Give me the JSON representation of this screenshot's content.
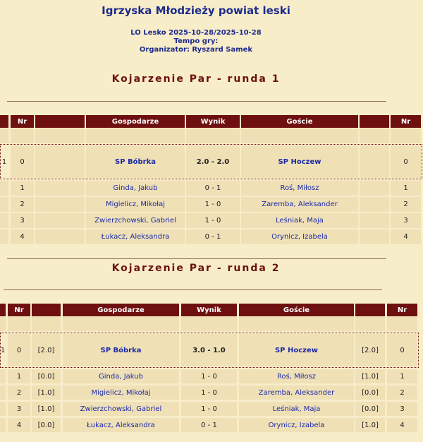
{
  "header": {
    "title": "Igrzyska Młodzieży powiat leski",
    "lines": [
      "LO Lesko 2025-10-28/2025-10-28",
      "Tempo gry:",
      "Organizator: Ryszard Samek"
    ]
  },
  "rounds": [
    {
      "heading": "Kojarzenie Par - runda 1",
      "table": {
        "header": [
          null,
          "Nr",
          null,
          "Gospodarze",
          "Wynik",
          "Goście",
          null,
          "Nr"
        ],
        "rows": [
          [
            null,
            null,
            null,
            null,
            null,
            null,
            null,
            null
          ],
          [
            "1",
            "0",
            null,
            "SP Bóbrka",
            "2.0 - 2.0",
            "SP Hoczew",
            null,
            "0"
          ],
          [
            null,
            "1",
            null,
            "Ginda, Jakub",
            "0 - 1",
            "Roś, Miłosz",
            null,
            "1"
          ],
          [
            null,
            "2",
            null,
            "Migielicz, Mikołaj",
            "1 - 0",
            "Zaremba, Aleksander",
            null,
            "2"
          ],
          [
            null,
            "3",
            null,
            "Zwierzchowski, Gabriel",
            "1 - 0",
            "Leśniak, Maja",
            null,
            "3"
          ],
          [
            null,
            "4",
            null,
            "Łukacz, Aleksandra",
            "0 - 1",
            "Orynicz, Izabela",
            null,
            "4"
          ]
        ]
      }
    },
    {
      "heading": "Kojarzenie Par - runda 2",
      "table": {
        "header": [
          null,
          "Nr",
          null,
          "Gospodarze",
          "Wynik",
          "Goście",
          null,
          "Nr"
        ],
        "rows": [
          [
            null,
            null,
            null,
            null,
            null,
            null,
            null,
            null
          ],
          [
            "1",
            "0",
            "[2.0]",
            "SP Bóbrka",
            "3.0 - 1.0",
            "SP Hoczew",
            "[2.0]",
            "0"
          ],
          [
            null,
            "1",
            "[0.0]",
            "Ginda, Jakub",
            "1 - 0",
            "Roś, Miłosz",
            "[1.0]",
            "1"
          ],
          [
            null,
            "2",
            "[1.0]",
            "Migielicz, Mikołaj",
            "1 - 0",
            "Zaremba, Aleksander",
            "[0.0]",
            "2"
          ],
          [
            null,
            "3",
            "[1.0]",
            "Zwierzchowski, Gabriel",
            "1 - 0",
            "Leśniak, Maja",
            "[0.0]",
            "3"
          ],
          [
            null,
            "4",
            "[0.0]",
            "Łukacz, Aleksandra",
            "0 - 1",
            "Orynicz, Izabela",
            "[1.0]",
            "4"
          ]
        ]
      }
    }
  ]
}
